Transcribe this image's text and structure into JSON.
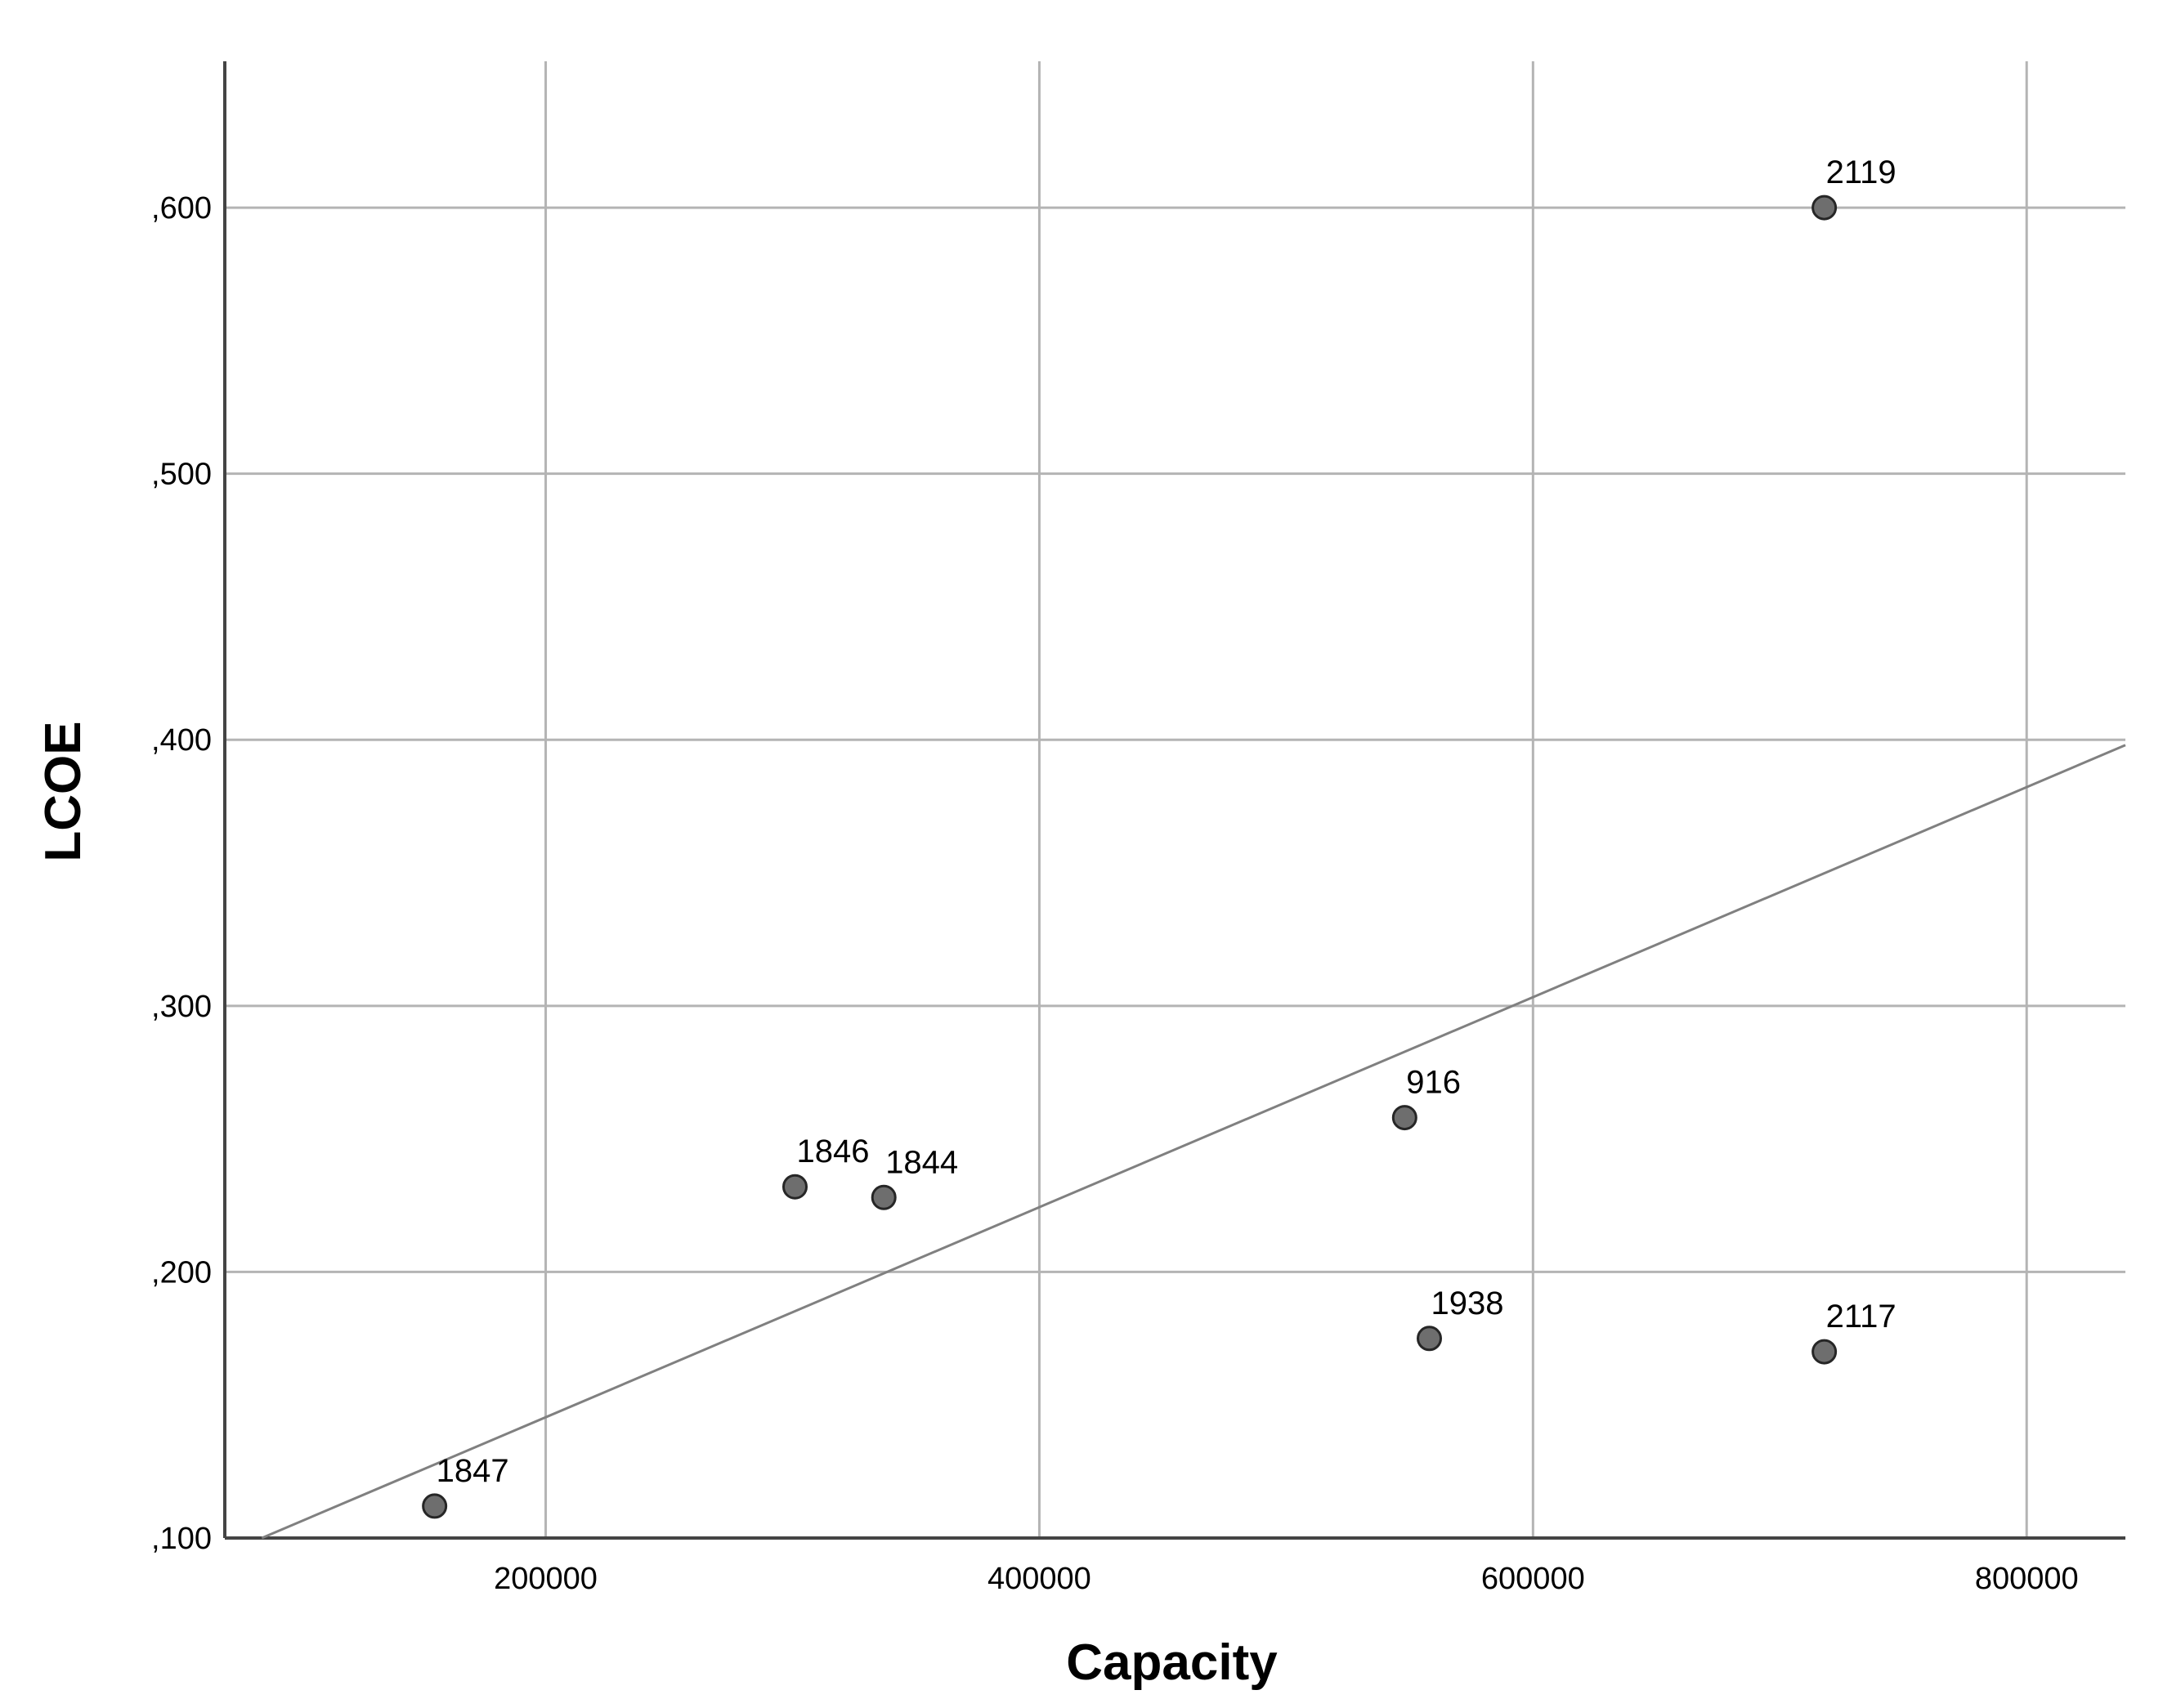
{
  "chart_data": {
    "type": "scatter",
    "title": "",
    "xlabel": "Capacity",
    "ylabel": "LCOE",
    "xlim": [
      70000,
      840000
    ],
    "ylim": [
      0.1,
      0.655
    ],
    "x_ticks": [
      {
        "value": 200000,
        "label": "200000"
      },
      {
        "value": 400000,
        "label": "400000"
      },
      {
        "value": 600000,
        "label": "600000"
      },
      {
        "value": 800000,
        "label": "800000"
      }
    ],
    "y_ticks": [
      {
        "value": 0.1,
        "label": ",100"
      },
      {
        "value": 0.2,
        "label": ",200"
      },
      {
        "value": 0.3,
        "label": ",300"
      },
      {
        "value": 0.4,
        "label": ",400"
      },
      {
        "value": 0.5,
        "label": ",500"
      },
      {
        "value": 0.6,
        "label": ",600"
      }
    ],
    "grid": true,
    "points": [
      {
        "label": "1847",
        "x": 155000,
        "y": 0.112
      },
      {
        "label": "1846",
        "x": 301000,
        "y": 0.232
      },
      {
        "label": "1844",
        "x": 337000,
        "y": 0.228
      },
      {
        "label": "916",
        "x": 548000,
        "y": 0.258
      },
      {
        "label": "1938",
        "x": 558000,
        "y": 0.175
      },
      {
        "label": "2119",
        "x": 718000,
        "y": 0.6
      },
      {
        "label": "2117",
        "x": 718000,
        "y": 0.17
      }
    ],
    "fit_line": {
      "x": [
        85000,
        840000
      ],
      "y": [
        0.1,
        0.398
      ]
    },
    "colors": {
      "point_fill": "#6e6e6e",
      "point_stroke": "#262626",
      "grid": "#b4b4b4",
      "axis": "#444444",
      "fit_line": "#808080"
    }
  }
}
